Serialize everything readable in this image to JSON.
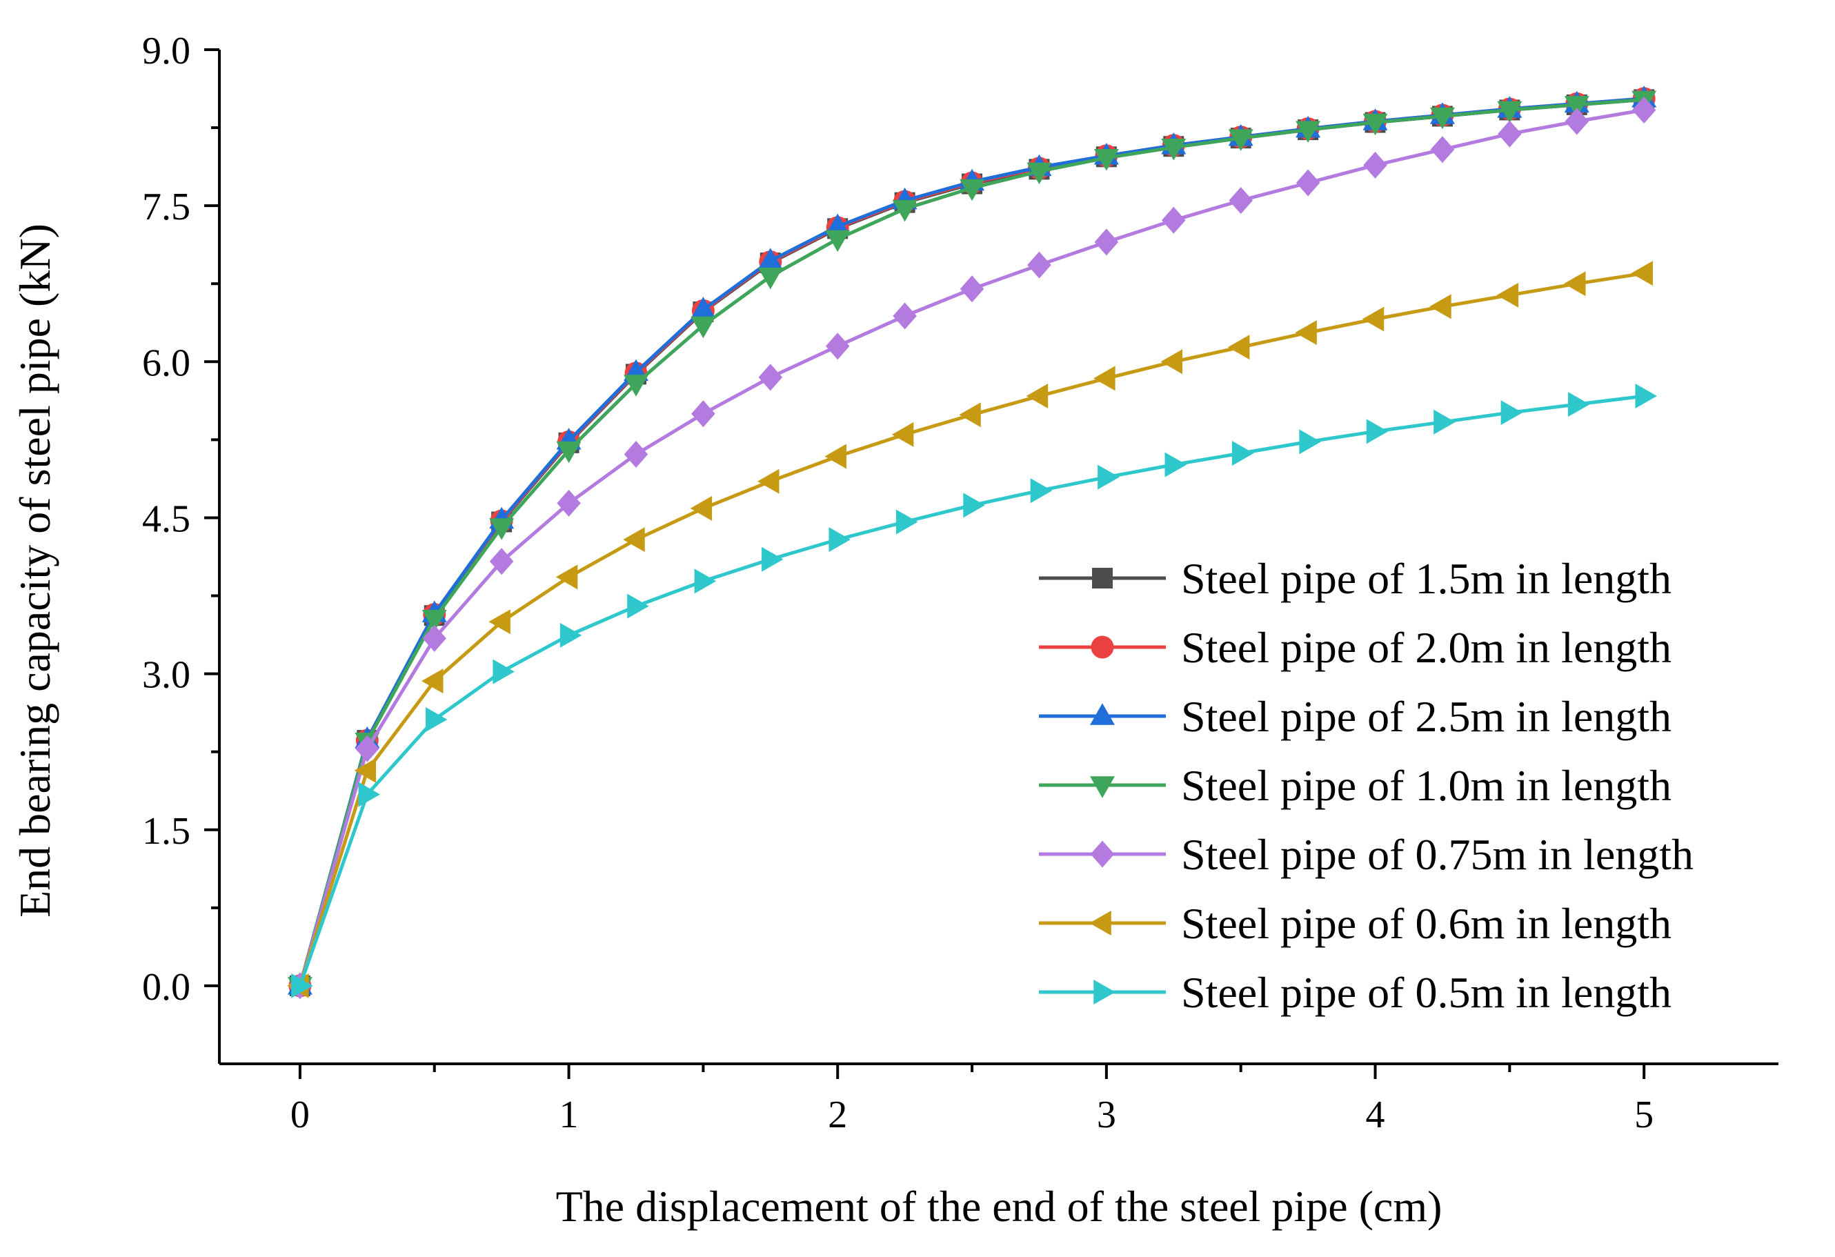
{
  "chart_data": {
    "type": "line",
    "title": "",
    "xlabel": "The displacement of the end of the steel pipe (cm)",
    "ylabel": "End bearing capacity of steel pipe (kN)",
    "xlim": [
      -0.3,
      5.5
    ],
    "ylim": [
      -0.75,
      9.0
    ],
    "x_ticks": [
      0,
      1,
      2,
      3,
      4,
      5
    ],
    "x_tick_labels": [
      "0",
      "1",
      "2",
      "3",
      "4",
      "5"
    ],
    "x_minor_ticks": [
      0.5,
      1.5,
      2.5,
      3.5,
      4.5
    ],
    "y_ticks": [
      0.0,
      1.5,
      3.0,
      4.5,
      6.0,
      7.5,
      9.0
    ],
    "y_tick_labels": [
      "0.0",
      "1.5",
      "3.0",
      "4.5",
      "6.0",
      "7.5",
      "9.0"
    ],
    "y_minor_ticks": [
      0.75,
      2.25,
      3.75,
      5.25,
      6.75,
      8.25
    ],
    "legend_position": "bottom-right",
    "x": [
      0,
      0.25,
      0.5,
      0.75,
      1.0,
      1.25,
      1.5,
      1.75,
      2.0,
      2.25,
      2.5,
      2.75,
      3.0,
      3.25,
      3.5,
      3.75,
      4.0,
      4.25,
      4.5,
      4.75,
      5.0
    ],
    "series": [
      {
        "name": "Steel pipe of 1.5m in length",
        "color": "#4d4d4d",
        "marker": "square",
        "values": [
          0,
          2.36,
          3.56,
          4.46,
          5.22,
          5.88,
          6.48,
          6.95,
          7.28,
          7.53,
          7.71,
          7.85,
          7.97,
          8.07,
          8.15,
          8.23,
          8.3,
          8.36,
          8.42,
          8.47,
          8.52
        ]
      },
      {
        "name": "Steel pipe of 2.0m in length",
        "color": "#ec4141",
        "marker": "circle",
        "values": [
          0,
          2.36,
          3.57,
          4.47,
          5.23,
          5.89,
          6.49,
          6.96,
          7.29,
          7.54,
          7.72,
          7.86,
          7.98,
          8.08,
          8.16,
          8.24,
          8.31,
          8.37,
          8.43,
          8.48,
          8.53
        ]
      },
      {
        "name": "Steel pipe of 2.5m in length",
        "color": "#1f6ed9",
        "marker": "triangle-up",
        "values": [
          0,
          2.37,
          3.58,
          4.48,
          5.24,
          5.9,
          6.5,
          6.97,
          7.3,
          7.55,
          7.73,
          7.87,
          7.98,
          8.08,
          8.16,
          8.24,
          8.31,
          8.37,
          8.43,
          8.48,
          8.53
        ]
      },
      {
        "name": "Steel pipe of 1.0m in length",
        "color": "#3ea55a",
        "marker": "triangle-down",
        "values": [
          0,
          2.35,
          3.53,
          4.41,
          5.15,
          5.79,
          6.35,
          6.82,
          7.18,
          7.47,
          7.67,
          7.83,
          7.96,
          8.06,
          8.15,
          8.23,
          8.3,
          8.36,
          8.42,
          8.47,
          8.52
        ]
      },
      {
        "name": "Steel pipe of 0.75m in length",
        "color": "#b37ae0",
        "marker": "diamond",
        "values": [
          0,
          2.28,
          3.34,
          4.08,
          4.64,
          5.11,
          5.5,
          5.85,
          6.15,
          6.44,
          6.7,
          6.93,
          7.15,
          7.36,
          7.55,
          7.72,
          7.89,
          8.04,
          8.19,
          8.31,
          8.42
        ]
      },
      {
        "name": "Steel pipe of 0.6m in length",
        "color": "#c79a14",
        "marker": "triangle-left",
        "values": [
          0,
          2.07,
          2.93,
          3.5,
          3.93,
          4.29,
          4.59,
          4.85,
          5.09,
          5.3,
          5.49,
          5.67,
          5.84,
          6.0,
          6.14,
          6.28,
          6.41,
          6.53,
          6.64,
          6.75,
          6.85
        ]
      },
      {
        "name": "Steel pipe of 0.5m in length",
        "color": "#2ec8cc",
        "marker": "triangle-right",
        "values": [
          0,
          1.84,
          2.56,
          3.02,
          3.37,
          3.65,
          3.89,
          4.1,
          4.29,
          4.46,
          4.62,
          4.76,
          4.89,
          5.01,
          5.12,
          5.23,
          5.33,
          5.42,
          5.51,
          5.59,
          5.67
        ]
      }
    ]
  }
}
